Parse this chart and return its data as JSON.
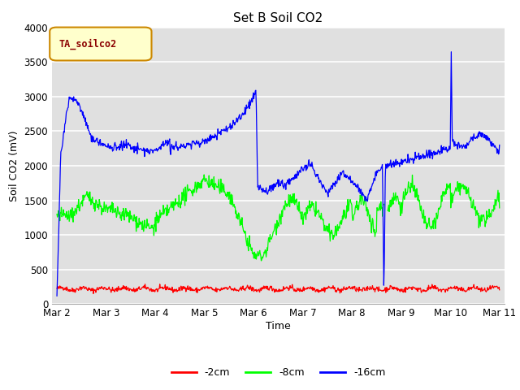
{
  "title": "Set B Soil CO2",
  "ylabel": "Soil CO2 (mV)",
  "xlabel": "Time",
  "legend_label": "TA_soilco2",
  "ylim": [
    0,
    4000
  ],
  "series_labels": [
    "-2cm",
    "-8cm",
    "-16cm"
  ],
  "series_colors": [
    "red",
    "lime",
    "blue"
  ],
  "background_color": "#e0e0e0",
  "grid_color": "white",
  "x_tick_labels": [
    "Mar 2",
    "Mar 3",
    "Mar 4",
    "Mar 5",
    "Mar 6",
    "Mar 7",
    "Mar 8",
    "Mar 9",
    "Mar 10",
    "Mar 11"
  ],
  "x_tick_positions": [
    0,
    1,
    2,
    3,
    4,
    5,
    6,
    7,
    8,
    9
  ],
  "yticks": [
    0,
    500,
    1000,
    1500,
    2000,
    2500,
    3000,
    3500,
    4000
  ]
}
